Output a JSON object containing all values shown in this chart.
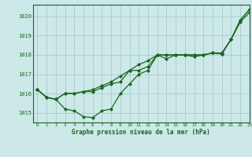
{
  "background_color": "#cce8e8",
  "grid_color": "#aacccc",
  "line_color": "#1a6620",
  "text_color": "#1a6620",
  "xlabel": "Graphe pression niveau de la mer (hPa)",
  "xlim": [
    -0.5,
    23
  ],
  "ylim": [
    1014.5,
    1020.6
  ],
  "yticks": [
    1015,
    1016,
    1017,
    1018,
    1019,
    1020
  ],
  "xticks": [
    0,
    1,
    2,
    3,
    4,
    5,
    6,
    7,
    8,
    9,
    10,
    11,
    12,
    13,
    14,
    15,
    16,
    17,
    18,
    19,
    20,
    21,
    22,
    23
  ],
  "series": [
    [
      1016.2,
      1015.8,
      1015.7,
      1015.2,
      1015.1,
      1014.8,
      1014.75,
      1015.1,
      1015.2,
      1016.0,
      1016.5,
      1017.0,
      1017.2,
      1018.0,
      1017.8,
      1018.0,
      1018.0,
      1017.9,
      1018.0,
      1018.1,
      1018.05,
      1018.8,
      1019.8,
      1020.35
    ],
    [
      1016.2,
      1015.8,
      1015.7,
      1016.0,
      1016.0,
      1016.1,
      1016.1,
      1016.3,
      1016.5,
      1016.6,
      1017.2,
      1017.2,
      1017.4,
      1018.0,
      1018.0,
      1018.0,
      1018.0,
      1018.0,
      1018.0,
      1018.1,
      1018.05,
      1018.8,
      1019.8,
      1020.35
    ],
    [
      1016.2,
      1015.8,
      1015.7,
      1016.0,
      1016.0,
      1016.1,
      1016.2,
      1016.4,
      1016.6,
      1016.9,
      1017.2,
      1017.5,
      1017.7,
      1018.0,
      1018.0,
      1018.0,
      1018.0,
      1018.0,
      1018.0,
      1018.1,
      1018.1,
      1018.8,
      1019.7,
      1020.2
    ]
  ]
}
